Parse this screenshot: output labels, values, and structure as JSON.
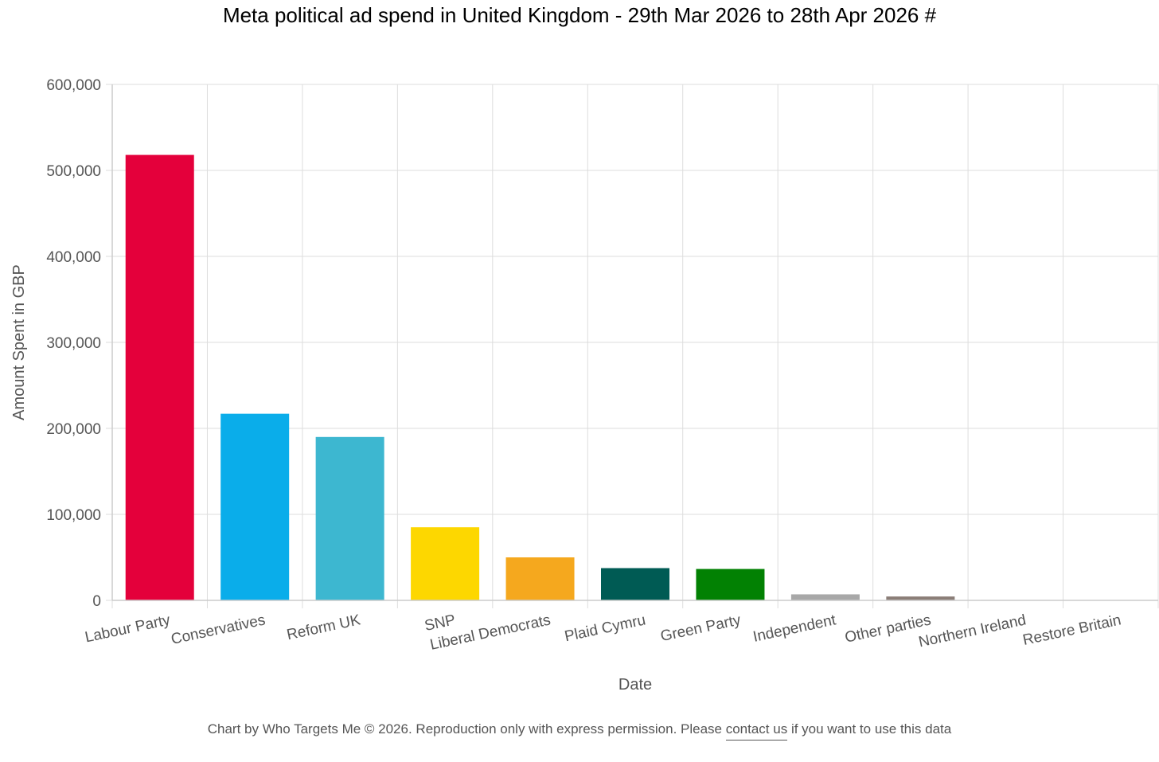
{
  "chart_data": {
    "type": "bar",
    "title": "Meta political ad spend in United Kingdom - 29th Mar 2026 to 28th Apr 2026 #",
    "xlabel": "Date",
    "ylabel": "Amount Spent in GBP",
    "ylim": [
      0,
      600000
    ],
    "yticks": [
      "0",
      "100,000",
      "200,000",
      "300,000",
      "400,000",
      "500,000",
      "600,000"
    ],
    "grid": true,
    "legend": "none",
    "categories": [
      "Labour Party",
      "Conservatives",
      "Reform UK",
      "SNP",
      "Liberal Democrats",
      "Plaid Cymru",
      "Green Party",
      "Independent",
      "Other parties",
      "Northern Ireland",
      "Restore Britain"
    ],
    "values": [
      518000,
      217000,
      190000,
      85000,
      50000,
      37500,
      36500,
      7000,
      4500,
      500,
      300
    ],
    "colors": [
      "#e4003b",
      "#0aadea",
      "#3db7d0",
      "#fdd700",
      "#f5a81e",
      "#005b54",
      "#028103",
      "#a8a8a8",
      "#8a7d77",
      "#666666",
      "#555555"
    ]
  },
  "footer": {
    "prefix": "Chart by Who Targets Me © 2026. Reproduction only with express permission. Please ",
    "link_text": "contact us",
    "suffix": " if you want to use this data"
  }
}
